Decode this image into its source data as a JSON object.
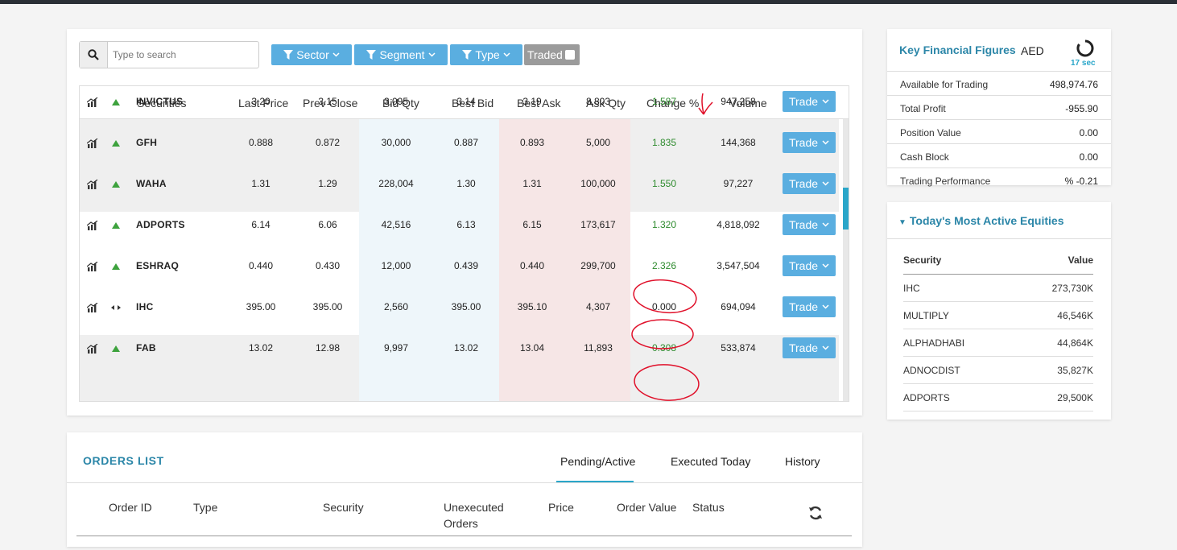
{
  "search": {
    "placeholder": "Type to search"
  },
  "filters": {
    "sector": "Sector",
    "segment": "Segment",
    "type": "Type",
    "traded": "Traded"
  },
  "grid": {
    "headers": {
      "securities": "Securities",
      "last_price": "Last Price",
      "prev_close": "Prev Close",
      "bid_qty": "Bid Qty",
      "best_bid": "Best Bid",
      "best_ask": "Best Ask",
      "ask_qty": "Ask Qty",
      "change_pct": "Change %",
      "volume": "Volume"
    },
    "trade_label": "Trade",
    "rows": [
      {
        "symbol": "INVICTUS",
        "last": "3.20",
        "prev": "3.15",
        "bid_qty": "3,095",
        "best_bid": "3.14",
        "best_ask": "3.19",
        "ask_qty": "8,803",
        "change": "1.587",
        "volume": "947,258",
        "trend": "up"
      },
      {
        "symbol": "GFH",
        "last": "0.888",
        "prev": "0.872",
        "bid_qty": "30,000",
        "best_bid": "0.887",
        "best_ask": "0.893",
        "ask_qty": "5,000",
        "change": "1.835",
        "volume": "144,368",
        "trend": "up"
      },
      {
        "symbol": "WAHA",
        "last": "1.31",
        "prev": "1.29",
        "bid_qty": "228,004",
        "best_bid": "1.30",
        "best_ask": "1.31",
        "ask_qty": "100,000",
        "change": "1.550",
        "volume": "97,227",
        "trend": "up"
      },
      {
        "symbol": "ADPORTS",
        "last": "6.14",
        "prev": "6.06",
        "bid_qty": "42,516",
        "best_bid": "6.13",
        "best_ask": "6.15",
        "ask_qty": "173,617",
        "change": "1.320",
        "volume": "4,818,092",
        "trend": "up"
      },
      {
        "symbol": "ESHRAQ",
        "last": "0.440",
        "prev": "0.430",
        "bid_qty": "12,000",
        "best_bid": "0.439",
        "best_ask": "0.440",
        "ask_qty": "299,700",
        "change": "2.326",
        "volume": "3,547,504",
        "trend": "up"
      },
      {
        "symbol": "IHC",
        "last": "395.00",
        "prev": "395.00",
        "bid_qty": "2,560",
        "best_bid": "395.00",
        "best_ask": "395.10",
        "ask_qty": "4,307",
        "change": "0.000",
        "volume": "694,094",
        "trend": "flat"
      },
      {
        "symbol": "FAB",
        "last": "13.02",
        "prev": "12.98",
        "bid_qty": "9,997",
        "best_bid": "13.02",
        "best_ask": "13.04",
        "ask_qty": "11,893",
        "change": "0.308",
        "volume": "533,874",
        "trend": "up"
      }
    ]
  },
  "orders": {
    "title": "ORDERS LIST",
    "tabs": {
      "pending": "Pending/Active",
      "executed": "Executed Today",
      "history": "History"
    },
    "headers": {
      "order_id": "Order ID",
      "type": "Type",
      "security": "Security",
      "unexecuted_1": "Unexecuted",
      "unexecuted_2": "Orders",
      "price": "Price",
      "order_value": "Order Value",
      "status": "Status"
    }
  },
  "kff": {
    "title": "Key Financial Figures",
    "currency": "AED",
    "timer": "17 sec",
    "rows": [
      {
        "label": "Available for Trading",
        "value": "498,974.76"
      },
      {
        "label": "Total Profit",
        "value": "-955.90"
      },
      {
        "label": "Position Value",
        "value": "0.00"
      },
      {
        "label": "Cash Block",
        "value": "0.00"
      },
      {
        "label": "Trading Performance",
        "value": "% -0.21"
      }
    ]
  },
  "most_active": {
    "title": "Today's Most Active Equities",
    "col_security": "Security",
    "col_value": "Value",
    "rows": [
      {
        "security": "IHC",
        "value": "273,730K"
      },
      {
        "security": "MULTIPLY",
        "value": "46,546K"
      },
      {
        "security": "ALPHADHABI",
        "value": "44,864K"
      },
      {
        "security": "ADNOCDIST",
        "value": "35,827K"
      },
      {
        "security": "ADPORTS",
        "value": "29,500K"
      }
    ]
  },
  "colors": {
    "accent": "#5aaee0",
    "title": "#2b86a8",
    "positive": "#2e8b2e",
    "annotation": "#e0102a"
  }
}
